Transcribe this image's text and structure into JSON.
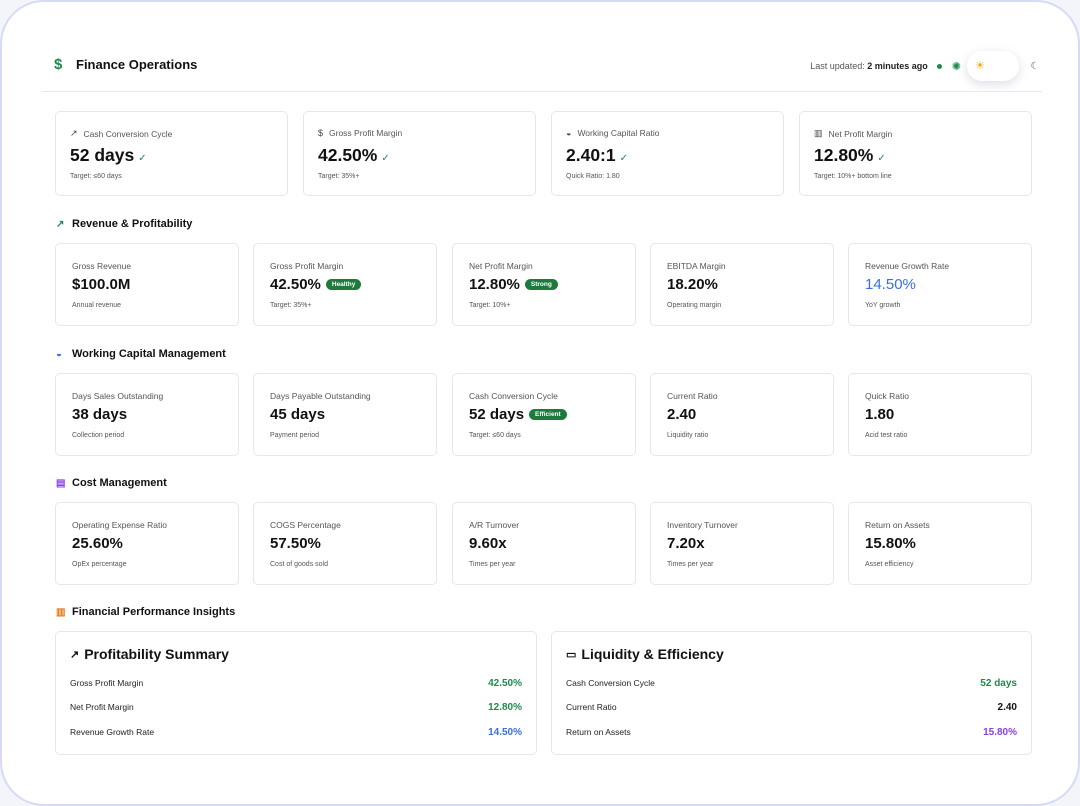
{
  "header": {
    "title": "Finance Operations",
    "last_updated_label": "Last updated:",
    "last_updated_value": "2 minutes ago"
  },
  "kpis": [
    {
      "label": "Cash Conversion Cycle",
      "value": "52 days",
      "sub": "Target: ≤60 days",
      "icon": "trend-up-icon"
    },
    {
      "label": "Gross Profit Margin",
      "value": "42.50%",
      "sub": "Target: 35%+",
      "icon": "dollar-icon"
    },
    {
      "label": "Working Capital Ratio",
      "value": "2.40:1",
      "sub": "Quick Ratio: 1.80",
      "icon": "piggy-bank-icon"
    },
    {
      "label": "Net Profit Margin",
      "value": "12.80%",
      "sub": "Target: 10%+ bottom line",
      "icon": "bar-chart-icon"
    }
  ],
  "sections": {
    "revenue": "Revenue & Profitability",
    "working_capital": "Working Capital Management",
    "cost": "Cost Management",
    "insights": "Financial Performance Insights"
  },
  "revenue_cards": [
    {
      "label": "Gross Revenue",
      "value": "$100.0M",
      "sub": "Annual revenue",
      "badge": ""
    },
    {
      "label": "Gross Profit Margin",
      "value": "42.50%",
      "sub": "Target: 35%+",
      "badge": "Healthy"
    },
    {
      "label": "Net Profit Margin",
      "value": "12.80%",
      "sub": "Target: 10%+",
      "badge": "Strong"
    },
    {
      "label": "EBITDA Margin",
      "value": "18.20%",
      "sub": "Operating margin",
      "badge": ""
    },
    {
      "label": "Revenue Growth Rate",
      "value": "14.50%",
      "sub": "YoY growth",
      "badge": ""
    }
  ],
  "wc_cards": [
    {
      "label": "Days Sales Outstanding",
      "value": "38 days",
      "sub": "Collection period",
      "badge": ""
    },
    {
      "label": "Days Payable Outstanding",
      "value": "45 days",
      "sub": "Payment period",
      "badge": ""
    },
    {
      "label": "Cash Conversion Cycle",
      "value": "52 days",
      "sub": "Target: ≤60 days",
      "badge": "Efficient"
    },
    {
      "label": "Current Ratio",
      "value": "2.40",
      "sub": "Liquidity ratio",
      "badge": ""
    },
    {
      "label": "Quick Ratio",
      "value": "1.80",
      "sub": "Acid test ratio",
      "badge": ""
    }
  ],
  "cost_cards": [
    {
      "label": "Operating Expense Ratio",
      "value": "25.60%",
      "sub": "OpEx percentage"
    },
    {
      "label": "COGS Percentage",
      "value": "57.50%",
      "sub": "Cost of goods sold"
    },
    {
      "label": "A/R Turnover",
      "value": "9.60x",
      "sub": "Times per year"
    },
    {
      "label": "Inventory Turnover",
      "value": "7.20x",
      "sub": "Times per year"
    },
    {
      "label": "Return on Assets",
      "value": "15.80%",
      "sub": "Asset efficiency"
    }
  ],
  "profitability_summary": {
    "title": "Profitability Summary",
    "rows": [
      {
        "label": "Gross Profit Margin",
        "value": "42.50%",
        "color": "#1f8a4c"
      },
      {
        "label": "Net Profit Margin",
        "value": "12.80%",
        "color": "#1f8a4c"
      },
      {
        "label": "Revenue Growth Rate",
        "value": "14.50%",
        "color": "#3b6fe0"
      }
    ]
  },
  "liquidity_efficiency": {
    "title": "Liquidity & Efficiency",
    "rows": [
      {
        "label": "Cash Conversion Cycle",
        "value": "52 days",
        "color": "#1f8a4c"
      },
      {
        "label": "Current Ratio",
        "value": "2.40",
        "color": "#111111"
      },
      {
        "label": "Return on Assets",
        "value": "15.80%",
        "color": "#8b3fe0"
      }
    ]
  },
  "colors": {
    "accent_green": "#1f8a4c",
    "badge_green": "#1e7a3c",
    "blue": "#3b6fe0",
    "purple": "#8b3fe0",
    "sun": "#f0a500"
  }
}
